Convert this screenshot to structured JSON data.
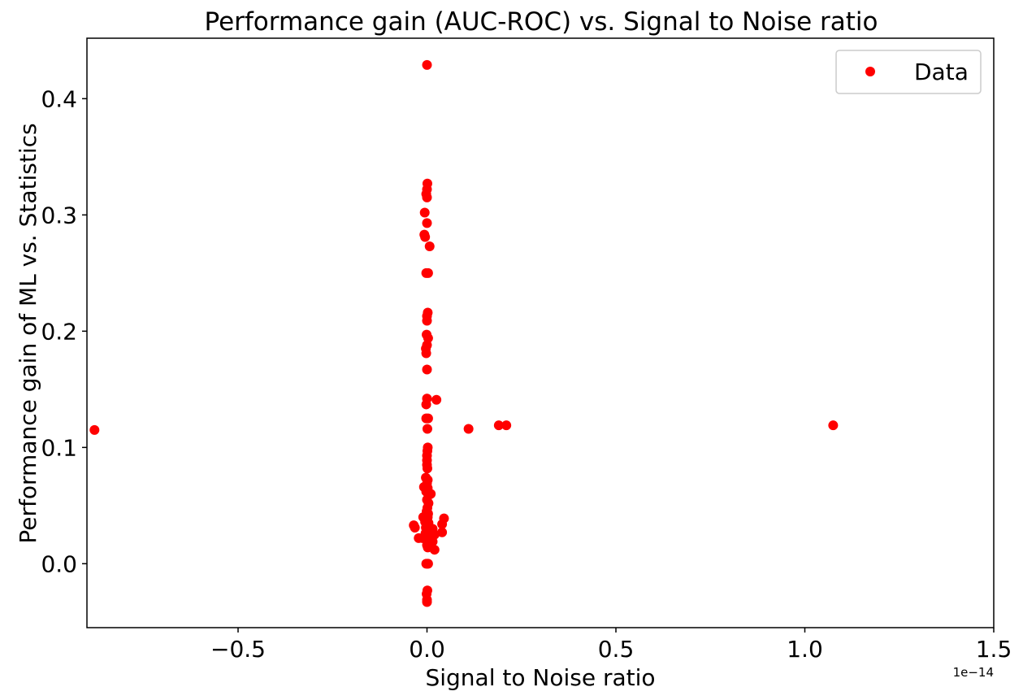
{
  "chart_data": {
    "type": "scatter",
    "title": "Performance gain (AUC-ROC) vs. Signal to Noise ratio",
    "xlabel": "Signal to Noise ratio",
    "ylabel": "Performance gain of ML vs. Statistics",
    "x_offset_label": "1e−14",
    "xlim": [
      -0.9,
      1.5
    ],
    "ylim": [
      -0.055,
      0.452
    ],
    "x_ticks": [
      {
        "value": -0.5,
        "label": "−0.5"
      },
      {
        "value": 0.0,
        "label": "0.0"
      },
      {
        "value": 0.5,
        "label": "0.5"
      },
      {
        "value": 1.0,
        "label": "1.0"
      },
      {
        "value": 1.5,
        "label": "1.5"
      }
    ],
    "y_ticks": [
      {
        "value": 0.0,
        "label": "0.0"
      },
      {
        "value": 0.1,
        "label": "0.1"
      },
      {
        "value": 0.2,
        "label": "0.2"
      },
      {
        "value": 0.3,
        "label": "0.3"
      },
      {
        "value": 0.4,
        "label": "0.4"
      }
    ],
    "grid": false,
    "legend": {
      "position": "top-right",
      "entries": [
        "Data"
      ]
    },
    "series": [
      {
        "name": "Data",
        "color": "#ff0000",
        "points": [
          [
            -0.88,
            0.115
          ],
          [
            0.0,
            0.429
          ],
          [
            0.001,
            0.327
          ],
          [
            0.0,
            0.322
          ],
          [
            -0.002,
            0.318
          ],
          [
            0.0,
            0.315
          ],
          [
            -0.006,
            0.302
          ],
          [
            0.0,
            0.293
          ],
          [
            -0.007,
            0.283
          ],
          [
            -0.005,
            0.281
          ],
          [
            0.007,
            0.273
          ],
          [
            -0.002,
            0.25
          ],
          [
            0.003,
            0.25
          ],
          [
            0.002,
            0.216
          ],
          [
            0.0,
            0.213
          ],
          [
            0.0,
            0.209
          ],
          [
            -0.001,
            0.197
          ],
          [
            0.003,
            0.194
          ],
          [
            0.0,
            0.188
          ],
          [
            -0.003,
            0.185
          ],
          [
            -0.002,
            0.181
          ],
          [
            0.0,
            0.167
          ],
          [
            0.0,
            0.142
          ],
          [
            0.025,
            0.141
          ],
          [
            -0.002,
            0.137
          ],
          [
            -0.002,
            0.125
          ],
          [
            0.003,
            0.125
          ],
          [
            0.001,
            0.116
          ],
          [
            0.11,
            0.116
          ],
          [
            0.19,
            0.119
          ],
          [
            0.21,
            0.119
          ],
          [
            1.075,
            0.119
          ],
          [
            0.002,
            0.1
          ],
          [
            0.001,
            0.097
          ],
          [
            0.0,
            0.093
          ],
          [
            0.0,
            0.089
          ],
          [
            0.0,
            0.085
          ],
          [
            0.001,
            0.082
          ],
          [
            -0.003,
            0.074
          ],
          [
            0.002,
            0.072
          ],
          [
            0.0,
            0.069
          ],
          [
            -0.008,
            0.066
          ],
          [
            0.002,
            0.065
          ],
          [
            -0.002,
            0.062
          ],
          [
            0.003,
            0.06
          ],
          [
            0.01,
            0.06
          ],
          [
            0.0,
            0.055
          ],
          [
            0.004,
            0.052
          ],
          [
            0.001,
            0.048
          ],
          [
            -0.001,
            0.045
          ],
          [
            0.003,
            0.043
          ],
          [
            -0.01,
            0.04
          ],
          [
            0.002,
            0.04
          ],
          [
            0.045,
            0.039
          ],
          [
            -0.005,
            0.036
          ],
          [
            0.004,
            0.035
          ],
          [
            0.04,
            0.034
          ],
          [
            -0.035,
            0.033
          ],
          [
            -0.032,
            0.031
          ],
          [
            -0.003,
            0.031
          ],
          [
            0.003,
            0.031
          ],
          [
            0.015,
            0.03
          ],
          [
            0.0,
            0.029
          ],
          [
            0.008,
            0.028
          ],
          [
            0.04,
            0.027
          ],
          [
            -0.004,
            0.026
          ],
          [
            0.003,
            0.025
          ],
          [
            0.02,
            0.025
          ],
          [
            0.007,
            0.024
          ],
          [
            -0.022,
            0.022
          ],
          [
            -0.012,
            0.022
          ],
          [
            0.006,
            0.02
          ],
          [
            0.015,
            0.019
          ],
          [
            0.0,
            0.016
          ],
          [
            0.002,
            0.014
          ],
          [
            0.02,
            0.012
          ],
          [
            -0.002,
            0.0
          ],
          [
            0.001,
            0.0
          ],
          [
            0.003,
            0.0
          ],
          [
            0.001,
            -0.023
          ],
          [
            -0.001,
            -0.026
          ],
          [
            0.0,
            -0.031
          ],
          [
            0.0,
            -0.033
          ]
        ]
      }
    ]
  }
}
